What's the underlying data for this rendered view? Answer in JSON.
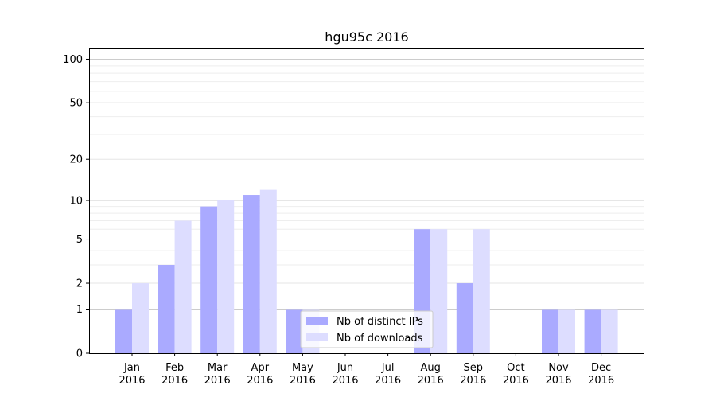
{
  "chart_data": {
    "type": "bar",
    "title": "hgu95c 2016",
    "xlabel": "",
    "ylabel": "",
    "yscale": "log(1+y)",
    "ylim": [
      0,
      120
    ],
    "yticks": [
      0,
      1,
      2,
      5,
      10,
      20,
      50,
      100
    ],
    "categories": [
      {
        "month": "Jan",
        "year": "2016"
      },
      {
        "month": "Feb",
        "year": "2016"
      },
      {
        "month": "Mar",
        "year": "2016"
      },
      {
        "month": "Apr",
        "year": "2016"
      },
      {
        "month": "May",
        "year": "2016"
      },
      {
        "month": "Jun",
        "year": "2016"
      },
      {
        "month": "Jul",
        "year": "2016"
      },
      {
        "month": "Aug",
        "year": "2016"
      },
      {
        "month": "Sep",
        "year": "2016"
      },
      {
        "month": "Oct",
        "year": "2016"
      },
      {
        "month": "Nov",
        "year": "2016"
      },
      {
        "month": "Dec",
        "year": "2016"
      }
    ],
    "series": [
      {
        "name": "Nb of distinct IPs",
        "color": "#aaaaff",
        "values": [
          1,
          3,
          9,
          11,
          1,
          0,
          0,
          6,
          2,
          0,
          1,
          1
        ]
      },
      {
        "name": "Nb of downloads",
        "color": "#ddddff",
        "values": [
          2,
          7,
          10,
          12,
          1,
          0,
          0,
          6,
          6,
          0,
          1,
          1
        ]
      }
    ],
    "grid": true,
    "legend_position": "bottom-center"
  }
}
